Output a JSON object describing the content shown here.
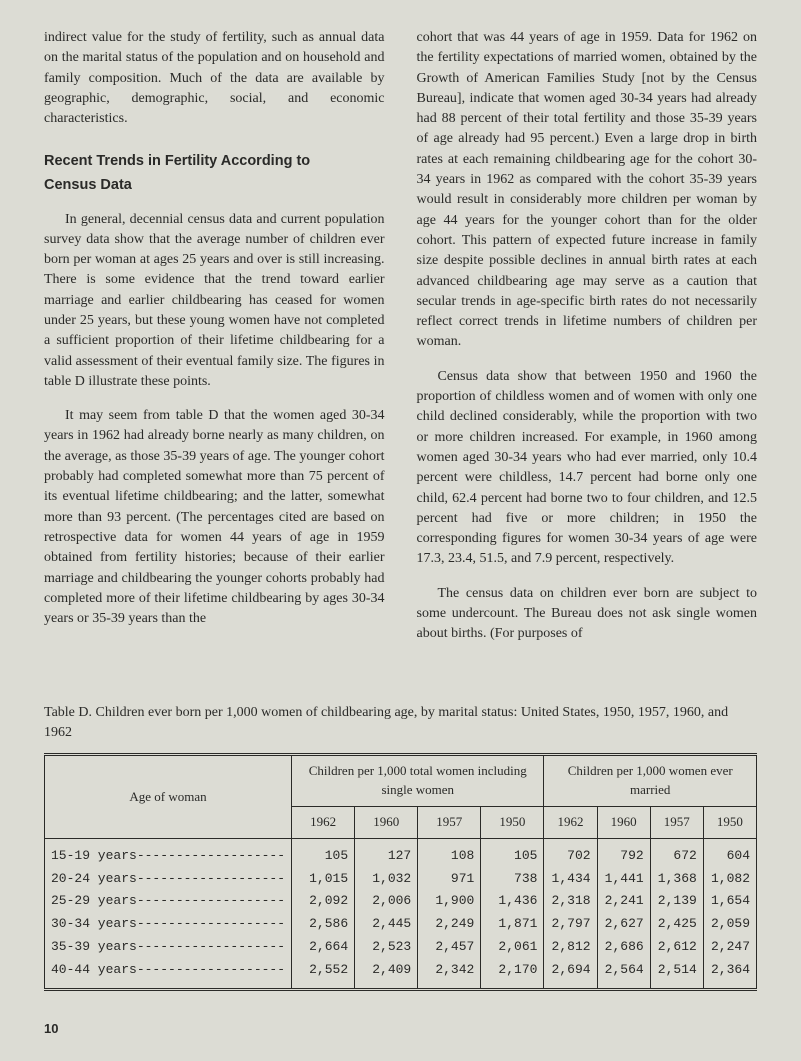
{
  "background_color": "#dcdcd4",
  "text_color": "#2a2a28",
  "body_font": "Georgia, 'Times New Roman', serif",
  "heading_font": "'Helvetica Neue', Helvetica, Arial, sans-serif",
  "mono_font": "'Courier New', Courier, monospace",
  "left_column": {
    "para1": "indirect value for the study of fertility, such as annual data on the marital status of the population and on household and family composition. Much of the data are available by geographic, demographic, social, and economic characteristics.",
    "heading_line1": "Recent Trends in Fertility According to",
    "heading_line2": "Census Data",
    "para2": "In general, decennial census data and current population survey data show that the average number of children ever born per woman at ages 25 years and over is still increasing. There is some evidence that the trend toward earlier marriage and earlier childbearing has ceased for women under 25 years, but these young women have not completed a sufficient proportion of their lifetime childbearing for a valid assessment of their eventual family size. The figures in table D illustrate these points.",
    "para3": "It may seem from table D that the women aged 30-34 years in 1962 had already borne nearly as many children, on the average, as those 35-39 years of age. The younger cohort probably had completed somewhat more than 75 percent of its eventual lifetime childbearing; and the latter, somewhat more than 93 percent. (The percentages cited are based on retrospective data for women 44 years of age in 1959 obtained from fertility histories; because of their earlier marriage and childbearing the younger cohorts probably had completed more of their lifetime childbearing by ages 30-34 years or 35-39 years than the"
  },
  "right_column": {
    "para1": "cohort that was 44 years of age in 1959. Data for 1962 on the fertility expectations of married women, obtained by the Growth of American Families Study [not by the Census Bureau], indicate that women aged 30-34 years had already had 88 percent of their total fertility and those 35-39 years of age already had 95 percent.) Even a large drop in birth rates at each remaining childbearing age for the cohort 30-34 years in 1962 as compared with the cohort 35-39 years would result in considerably more children per woman by age 44 years for the younger cohort than for the older cohort. This pattern of expected future increase in family size despite possible declines in annual birth rates at each advanced childbearing age may serve as a caution that secular trends in age-specific birth rates do not necessarily reflect correct trends in lifetime numbers of children per woman.",
    "para2": "Census data show that between 1950 and 1960 the proportion of childless women and of women with only one child declined considerably, while the proportion with two or more children increased. For example, in 1960 among women aged 30-34 years who had ever married, only 10.4 percent were childless, 14.7 percent had borne only one child, 62.4 percent had borne two to four children, and 12.5 percent had five or more children; in 1950 the corresponding figures for women 30-34 years of age were 17.3, 23.4, 51.5, and 7.9 percent, respectively.",
    "para3": "The census data on children ever born are subject to some undercount. The Bureau does not ask single women about births. (For purposes of"
  },
  "table": {
    "type": "table",
    "caption": "Table D.   Children ever born  per 1,000 women of  childbearing age, by marital status: United States, 1950, 1957, 1960, and 1962",
    "stub_header": "Age of woman",
    "group_headers": [
      "Children per 1,000 total women including single women",
      "Children per 1,000 women ever married"
    ],
    "col_headers": [
      "1962",
      "1960",
      "1957",
      "1950",
      "1962",
      "1960",
      "1957",
      "1950"
    ],
    "rows": [
      {
        "label": "15-19 years-------------------",
        "values": [
          "105",
          "127",
          "108",
          "105",
          "702",
          "792",
          "672",
          "604"
        ]
      },
      {
        "label": "20-24 years-------------------",
        "values": [
          "1,015",
          "1,032",
          "971",
          "738",
          "1,434",
          "1,441",
          "1,368",
          "1,082"
        ]
      },
      {
        "label": "25-29 years-------------------",
        "values": [
          "2,092",
          "2,006",
          "1,900",
          "1,436",
          "2,318",
          "2,241",
          "2,139",
          "1,654"
        ]
      },
      {
        "label": "30-34 years-------------------",
        "values": [
          "2,586",
          "2,445",
          "2,249",
          "1,871",
          "2,797",
          "2,627",
          "2,425",
          "2,059"
        ]
      },
      {
        "label": "35-39 years-------------------",
        "values": [
          "2,664",
          "2,523",
          "2,457",
          "2,061",
          "2,812",
          "2,686",
          "2,612",
          "2,247"
        ]
      },
      {
        "label": "40-44 years-------------------",
        "values": [
          "2,552",
          "2,409",
          "2,342",
          "2,170",
          "2,694",
          "2,564",
          "2,514",
          "2,364"
        ]
      }
    ],
    "border_color": "#2a2a28",
    "cell_align": "right",
    "stub_align": "left"
  },
  "page_number": "10"
}
